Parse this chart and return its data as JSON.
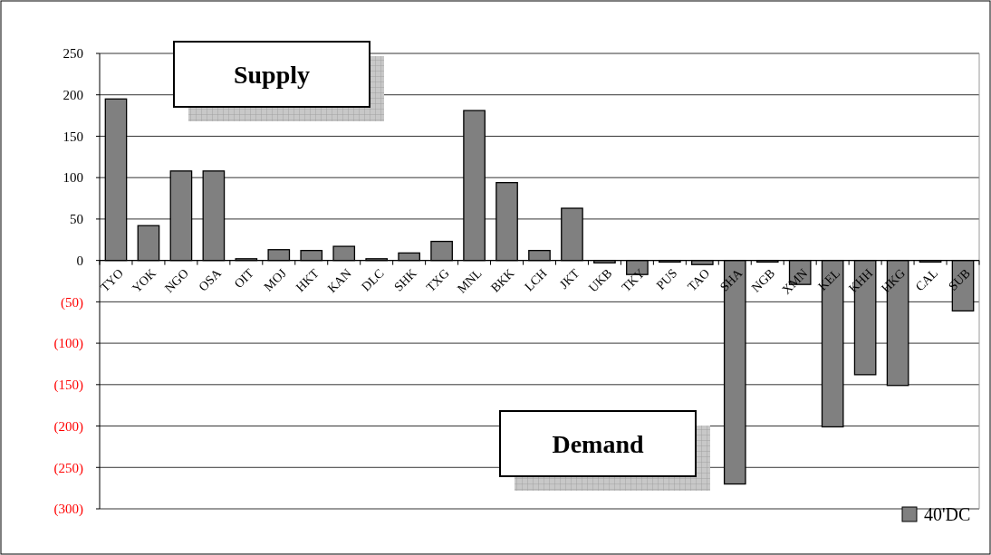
{
  "chart_data": {
    "type": "bar",
    "categories": [
      "TYO",
      "YOK",
      "NGO",
      "OSA",
      "OIT",
      "MOJ",
      "HKT",
      "KAN",
      "DLC",
      "SHK",
      "TXG",
      "MNL",
      "BKK",
      "LCH",
      "JKT",
      "UKB",
      "TKY",
      "PUS",
      "TAO",
      "SHA",
      "NGB",
      "XMN",
      "KEL",
      "KHH",
      "HKG",
      "CAL",
      "SUB"
    ],
    "series": [
      {
        "name": "40'DC",
        "color": "#808080",
        "values": [
          195,
          42,
          108,
          108,
          2,
          13,
          12,
          17,
          2,
          9,
          23,
          181,
          94,
          12,
          63,
          -3,
          -17,
          -2,
          -5,
          -270,
          -2,
          -29,
          -201,
          -138,
          -151,
          -2,
          -61
        ]
      }
    ],
    "ylim": [
      -300,
      250
    ],
    "yticks": [
      250,
      200,
      150,
      100,
      50,
      0,
      {
        "value": -50,
        "label": "(50)"
      },
      {
        "value": -100,
        "label": "(100)"
      },
      {
        "value": -150,
        "label": "(150)"
      },
      {
        "value": -200,
        "label": "(200)"
      },
      {
        "value": -250,
        "label": "(250)"
      },
      {
        "value": -300,
        "label": "(300)"
      }
    ],
    "annotations": [
      "Supply",
      "Demand"
    ],
    "grid": "y",
    "legend": "bottom right"
  }
}
